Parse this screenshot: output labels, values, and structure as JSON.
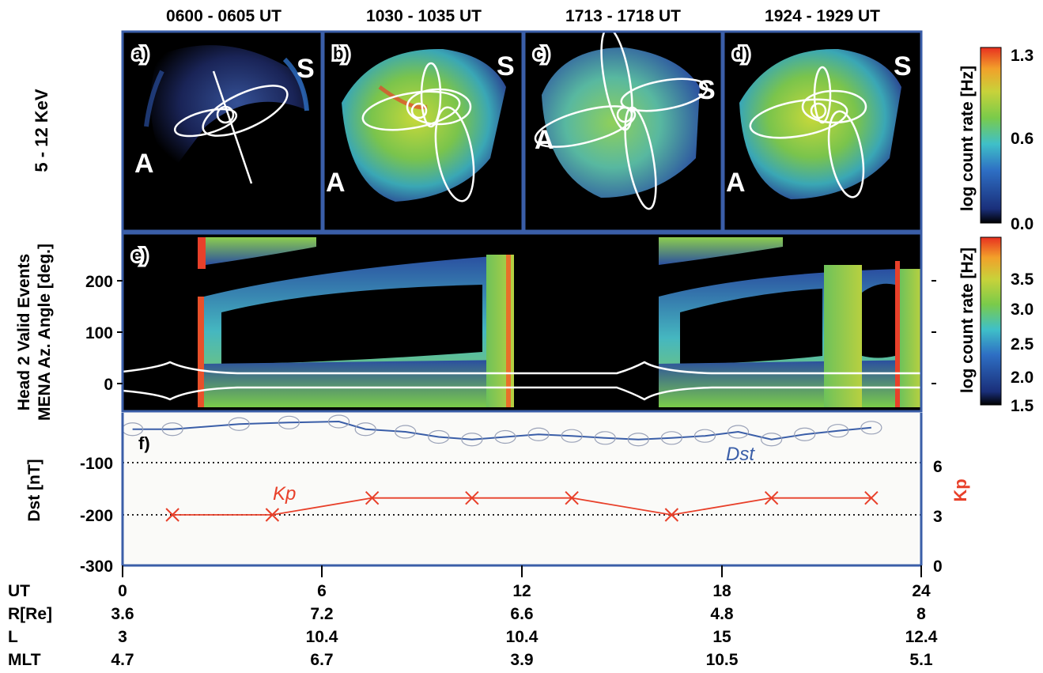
{
  "panels_top": [
    {
      "letter": "a)",
      "time": "0600 - 0605 UT",
      "label_s": "S",
      "label_a": "A"
    },
    {
      "letter": "b)",
      "time": "1030 - 1035 UT",
      "label_s": "S",
      "label_a": "A"
    },
    {
      "letter": "c)",
      "time": "1713 - 1718 UT",
      "label_s": "S",
      "label_a": "A"
    },
    {
      "letter": "d)",
      "time": "1924 - 1929 UT",
      "label_s": "S",
      "label_a": "A"
    }
  ],
  "energy_label": "5 - 12 KeV",
  "colorbar_top": {
    "label": "log count rate [Hz]",
    "ticks": [
      "1.3",
      "0.6",
      "0.0"
    ],
    "range": [
      0.0,
      1.3
    ]
  },
  "panel_e": {
    "letter": "e)",
    "ylabel_line1": "Head 2 Valid Events",
    "ylabel_line2": "MENA Az. Angle [deg.]",
    "yticks": [
      "200",
      "100",
      "0"
    ],
    "colorbar": {
      "label": "log count rate [Hz]",
      "ticks": [
        "3.5",
        "3.0",
        "2.5",
        "2.0",
        "1.5"
      ],
      "range": [
        1.5,
        3.8
      ]
    }
  },
  "panel_f": {
    "letter": "f)",
    "ylabel_left": "Dst [nT]",
    "ylabel_right": "Kp",
    "yticks_left": [
      "-100",
      "-200",
      "-300"
    ],
    "yticks_right": [
      "6",
      "3",
      "0"
    ],
    "dst_label": "Dst",
    "kp_label": "Kp"
  },
  "bottom_table": {
    "rows": [
      {
        "label": "UT",
        "values": [
          "0",
          "6",
          "12",
          "18",
          "24"
        ]
      },
      {
        "label": "R[Re]",
        "values": [
          "3.6",
          "7.2",
          "6.6",
          "4.8",
          "8"
        ]
      },
      {
        "label": "L",
        "values": [
          "3",
          "10.4",
          "10.4",
          "15",
          "12.4"
        ]
      },
      {
        "label": "MLT",
        "values": [
          "4.7",
          "6.7",
          "3.9",
          "10.5",
          "5.1"
        ]
      }
    ]
  },
  "chart_data": [
    {
      "type": "line",
      "title": "",
      "xlabel": "UT",
      "ylabel": "Dst [nT]",
      "xlim": [
        0,
        24
      ],
      "ylim": [
        -300,
        -20
      ],
      "grid": "dotted lines at -100 and -200",
      "series": [
        {
          "name": "Dst",
          "color": "#3a5ea8",
          "x": [
            0.3,
            1.5,
            3.5,
            5,
            6.5,
            7.3,
            8.5,
            9.5,
            10.5,
            11.5,
            12.5,
            13.5,
            14.5,
            15.5,
            16.5,
            17.5,
            18.5,
            19.5,
            20.5,
            21.5,
            22.5
          ],
          "y": [
            -35,
            -35,
            -25,
            -22,
            -20,
            -35,
            -40,
            -50,
            -55,
            -50,
            -45,
            -48,
            -52,
            -55,
            -52,
            -48,
            -40,
            -55,
            -45,
            -38,
            -32
          ]
        },
        {
          "name": "Kp",
          "color": "#e8402a",
          "axis": "right",
          "ylim_right": [
            0,
            8.5
          ],
          "x": [
            1.5,
            4.5,
            7.5,
            10.5,
            13.5,
            16.5,
            19.5,
            22.5
          ],
          "y": [
            3,
            3,
            4,
            4,
            4,
            3,
            4,
            4
          ]
        }
      ]
    }
  ]
}
